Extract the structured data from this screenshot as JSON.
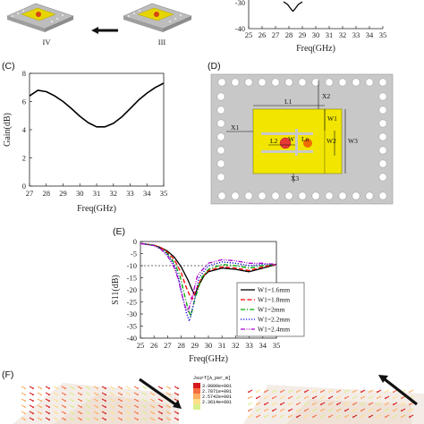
{
  "panels": {
    "top": {
      "step_left": "IV",
      "step_right": "III",
      "freq_label": "Freq(GHz)",
      "x_ticks": [
        "25",
        "26",
        "27",
        "28",
        "29",
        "30",
        "31",
        "32",
        "33",
        "34",
        "35"
      ],
      "y_ticks": [
        "-30",
        "-40"
      ]
    },
    "C": {
      "label": "(C)",
      "xlabel": "Freq(GHz)",
      "ylabel": "Gain(dB)",
      "x_ticks": [
        "27",
        "28",
        "29",
        "30",
        "31",
        "32",
        "33",
        "34",
        "35"
      ],
      "y_ticks": [
        "8",
        "6",
        "4",
        "2",
        "0"
      ]
    },
    "D": {
      "label": "(D)",
      "dims": {
        "x2": "X2",
        "l1": "L1",
        "w1": "W1",
        "w2": "W2",
        "w3": "W3",
        "x1": "X1",
        "l2": "L2",
        "w": "W",
        "ln": "Ln",
        "x3": "X3"
      }
    },
    "E": {
      "label": "(E)",
      "xlabel": "Freq(GHz)",
      "ylabel": "S11(dB)",
      "x_ticks": [
        "25",
        "26",
        "27",
        "28",
        "29",
        "30",
        "31",
        "32",
        "33",
        "34",
        "35"
      ],
      "y_ticks": [
        "0",
        "-5",
        "-10",
        "-15",
        "-20",
        "-25",
        "-30",
        "-35",
        "-40"
      ]
    },
    "F": {
      "label": "(F)",
      "colorbar_title": "Jsurf[A_per_m]",
      "colorbar_values": [
        "3.0000e+001",
        "2.7871e+001",
        "2.5742e+001",
        "2.3614e+001"
      ]
    }
  },
  "chart_data": [
    {
      "type": "line",
      "title": "",
      "xlabel": "Freq(GHz)",
      "ylabel": "",
      "xlim": [
        25,
        35
      ],
      "ylim": [
        -40,
        -30
      ],
      "series": [
        {
          "x": [
            27.6,
            27.9,
            28.2,
            28.3,
            28.4,
            28.7,
            29.0
          ],
          "y": [
            -30,
            -31,
            -33,
            -33.5,
            -33,
            -31,
            -30
          ]
        }
      ]
    },
    {
      "type": "line",
      "title": "",
      "xlabel": "Freq(GHz)",
      "ylabel": "Gain(dB)",
      "xlim": [
        27,
        35
      ],
      "ylim": [
        0,
        8
      ],
      "series": [
        {
          "x": [
            27.0,
            27.5,
            28.0,
            28.5,
            29.0,
            29.5,
            30.0,
            30.5,
            31.0,
            31.5,
            32.0,
            32.5,
            33.0,
            33.5,
            34.0,
            34.5,
            35.0
          ],
          "y": [
            6.4,
            6.8,
            6.7,
            6.4,
            6.0,
            5.5,
            4.95,
            4.5,
            4.2,
            4.2,
            4.45,
            4.9,
            5.5,
            6.1,
            6.6,
            7.0,
            7.3
          ]
        }
      ]
    },
    {
      "type": "line",
      "title": "",
      "xlabel": "Freq(GHz)",
      "ylabel": "S11(dB)",
      "xlim": [
        25,
        35
      ],
      "ylim": [
        -40,
        0
      ],
      "reference_line": -10,
      "legend": "bottom-right",
      "series": [
        {
          "name": "W1=1.6mm",
          "color": "#000000",
          "style": "solid",
          "x": [
            25,
            26,
            26.5,
            27,
            27.5,
            28,
            28.5,
            28.8,
            29,
            29.3,
            29.7,
            30,
            31,
            32,
            33,
            34,
            35
          ],
          "y": [
            -0.8,
            -1.5,
            -2.5,
            -4,
            -6.5,
            -10.5,
            -16,
            -20,
            -22,
            -18,
            -14,
            -12.5,
            -11,
            -11.5,
            -12.5,
            -11,
            -9.5
          ]
        },
        {
          "name": "W1=1.8mm",
          "color": "#ff0000",
          "style": "dash",
          "x": [
            25,
            26,
            26.5,
            27,
            27.5,
            28,
            28.3,
            28.6,
            28.8,
            29.1,
            29.5,
            30,
            31,
            32,
            33,
            34,
            35
          ],
          "y": [
            -0.8,
            -1.5,
            -2.5,
            -4.5,
            -7.5,
            -13,
            -18,
            -22,
            -24,
            -20,
            -15,
            -12,
            -10.5,
            -11,
            -12,
            -10.5,
            -9.5
          ]
        },
        {
          "name": "W1=2mm",
          "color": "#00aa00",
          "style": "dashdot",
          "x": [
            25,
            26,
            26.5,
            27,
            27.5,
            27.9,
            28.2,
            28.5,
            28.7,
            29,
            29.5,
            30,
            31,
            32,
            33,
            34,
            35
          ],
          "y": [
            -0.8,
            -1.5,
            -3,
            -5,
            -9,
            -14,
            -21,
            -28,
            -31,
            -24,
            -15,
            -11.5,
            -9.5,
            -10,
            -11,
            -10,
            -9.5
          ]
        },
        {
          "name": "W1=2.2mm",
          "color": "#0000cc",
          "style": "dot",
          "x": [
            25,
            26,
            26.5,
            27,
            27.5,
            27.8,
            28.1,
            28.4,
            28.6,
            28.9,
            29.3,
            30,
            31,
            32,
            33,
            34,
            35
          ],
          "y": [
            -0.8,
            -1.6,
            -3,
            -5.5,
            -10,
            -15,
            -23,
            -30,
            -33,
            -26,
            -15,
            -10,
            -8.5,
            -9,
            -10,
            -9.5,
            -9.5
          ]
        },
        {
          "name": "W1=2.4mm",
          "color": "#aa00cc",
          "style": "dashdotdot",
          "x": [
            25,
            26,
            26.5,
            27,
            27.5,
            27.8,
            28.0,
            28.3,
            28.5,
            28.8,
            29.2,
            30,
            31,
            32,
            33,
            34,
            35
          ],
          "y": [
            -0.8,
            -1.7,
            -3.2,
            -6,
            -11,
            -16,
            -21,
            -27,
            -29,
            -23,
            -14,
            -9,
            -7.5,
            -8,
            -9,
            -9,
            -9.5
          ]
        }
      ]
    }
  ]
}
